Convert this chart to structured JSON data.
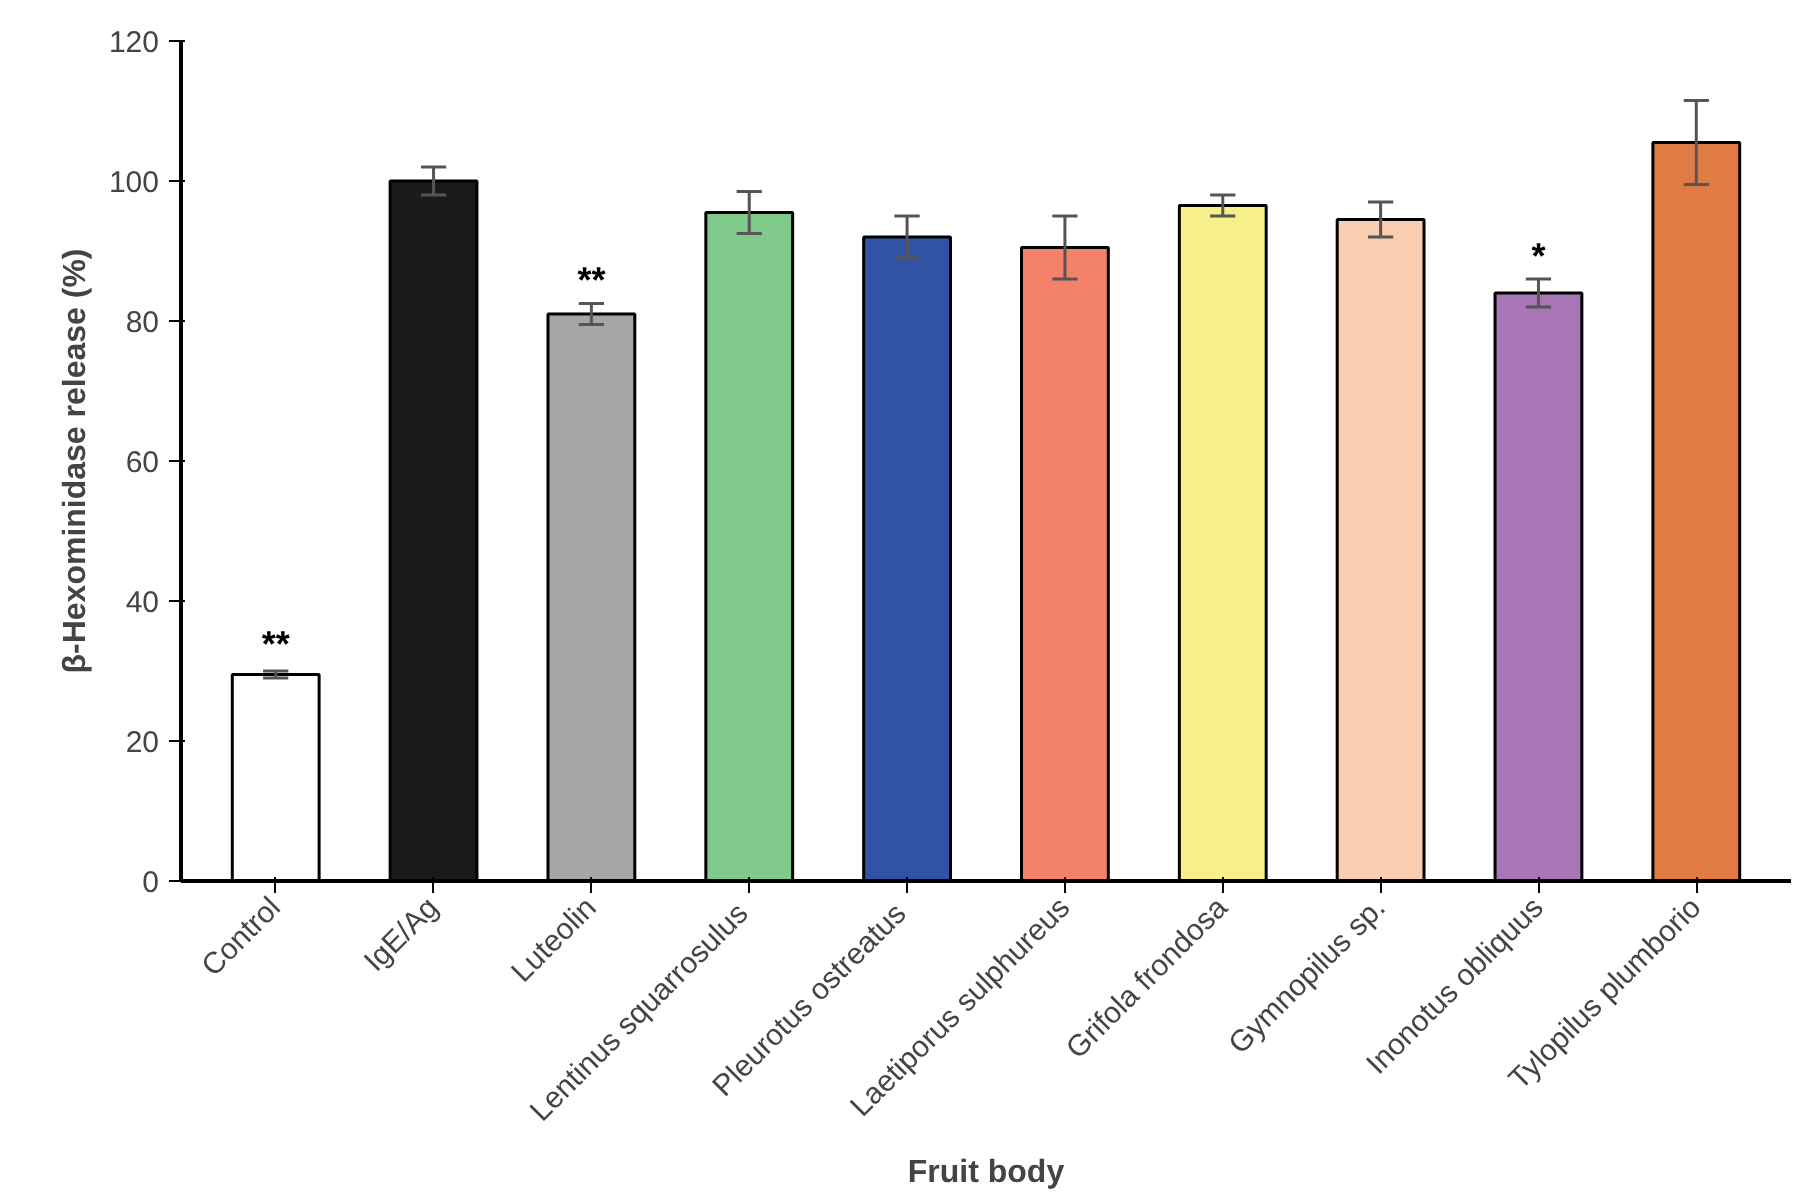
{
  "chart_data": {
    "type": "bar",
    "xlabel": "Fruit body",
    "ylabel": "β-Hexominidase release (%)",
    "categories": [
      "Control",
      "IgE/Ag",
      "Luteolin",
      "Lentinus  squarrosulus",
      "Pleurotus  ostreatus",
      "Laetiporus sulphureus",
      "Grifola frondosa",
      "Gymnopilus sp.",
      "Inonotus obliquus",
      "Tylopilus plumborio"
    ],
    "values": [
      29.5,
      100,
      81,
      95.5,
      92,
      90.5,
      96.5,
      94.5,
      84,
      105.5
    ],
    "errors": [
      0.5,
      2,
      1.5,
      3,
      3,
      4.5,
      1.5,
      2.5,
      2,
      6
    ],
    "colors": [
      "#ffffff",
      "#1a1a1a",
      "#a6a6a6",
      "#7fc98a",
      "#3153a6",
      "#f4826a",
      "#f7f08a",
      "#f9cdb0",
      "#a875b6",
      "#e07b45"
    ],
    "ylim": [
      0,
      120
    ],
    "yticks": [
      0,
      20,
      40,
      60,
      80,
      100,
      120
    ],
    "grid": false,
    "annotations": [
      {
        "text": "**",
        "x": "Control",
        "y": 31
      },
      {
        "text": "**",
        "x": "Luteolin",
        "y": 83
      },
      {
        "text": "*",
        "x": "Inonotus obliquus",
        "y": 86.5
      }
    ]
  }
}
